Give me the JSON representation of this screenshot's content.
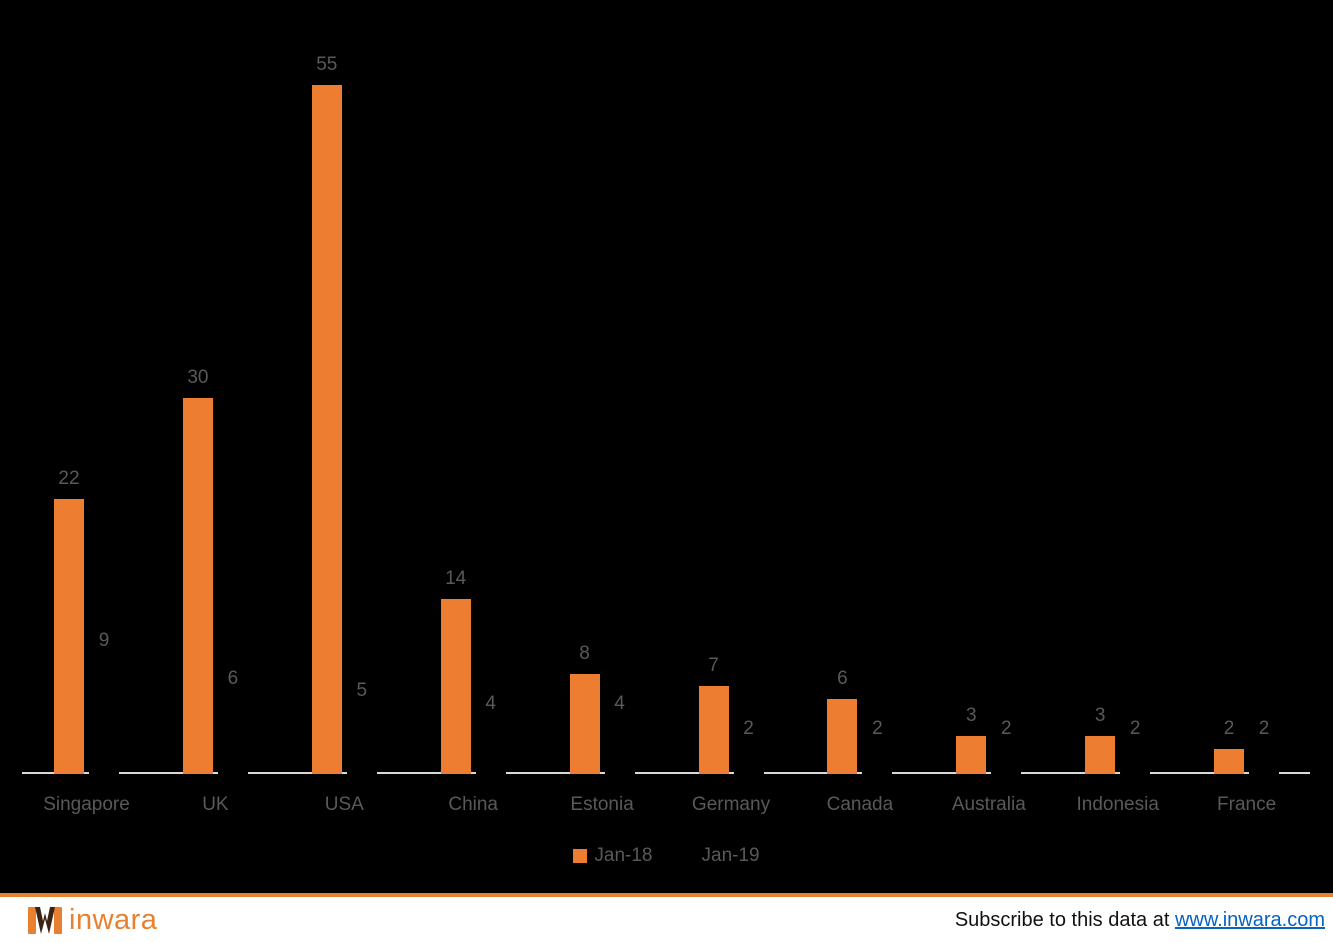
{
  "chart_data": {
    "type": "bar",
    "categories": [
      "Singapore",
      "UK",
      "USA",
      "China",
      "Estonia",
      "Germany",
      "Canada",
      "Australia",
      "Indonesia",
      "France"
    ],
    "series": [
      {
        "name": "Jan-18",
        "color": "#ED7D31",
        "label_color": "#595959",
        "values": [
          22,
          30,
          55,
          14,
          8,
          7,
          6,
          3,
          3,
          2
        ]
      },
      {
        "name": "Jan-19",
        "color": "#000000",
        "label_color": "#595959",
        "values": [
          9,
          6,
          5,
          4,
          4,
          2,
          2,
          2,
          2,
          2
        ]
      }
    ],
    "ylim": [
      0,
      55
    ],
    "grid": false,
    "data_labels": true,
    "legend_position": "bottom",
    "xlabel": "",
    "ylabel": ""
  },
  "colors": {
    "background": "#000000",
    "axis_line": "#D9D9D9",
    "category_label": "#595959",
    "footer_rule": "#E8802F",
    "logo_orange": "#E8802F",
    "logo_mark_dark": "#3B2314",
    "link_blue": "#0563C1"
  },
  "footer": {
    "logo_text": "inwara",
    "subscribe_text": "Subscribe to this data at ",
    "subscribe_link": "www.inwara.com"
  }
}
